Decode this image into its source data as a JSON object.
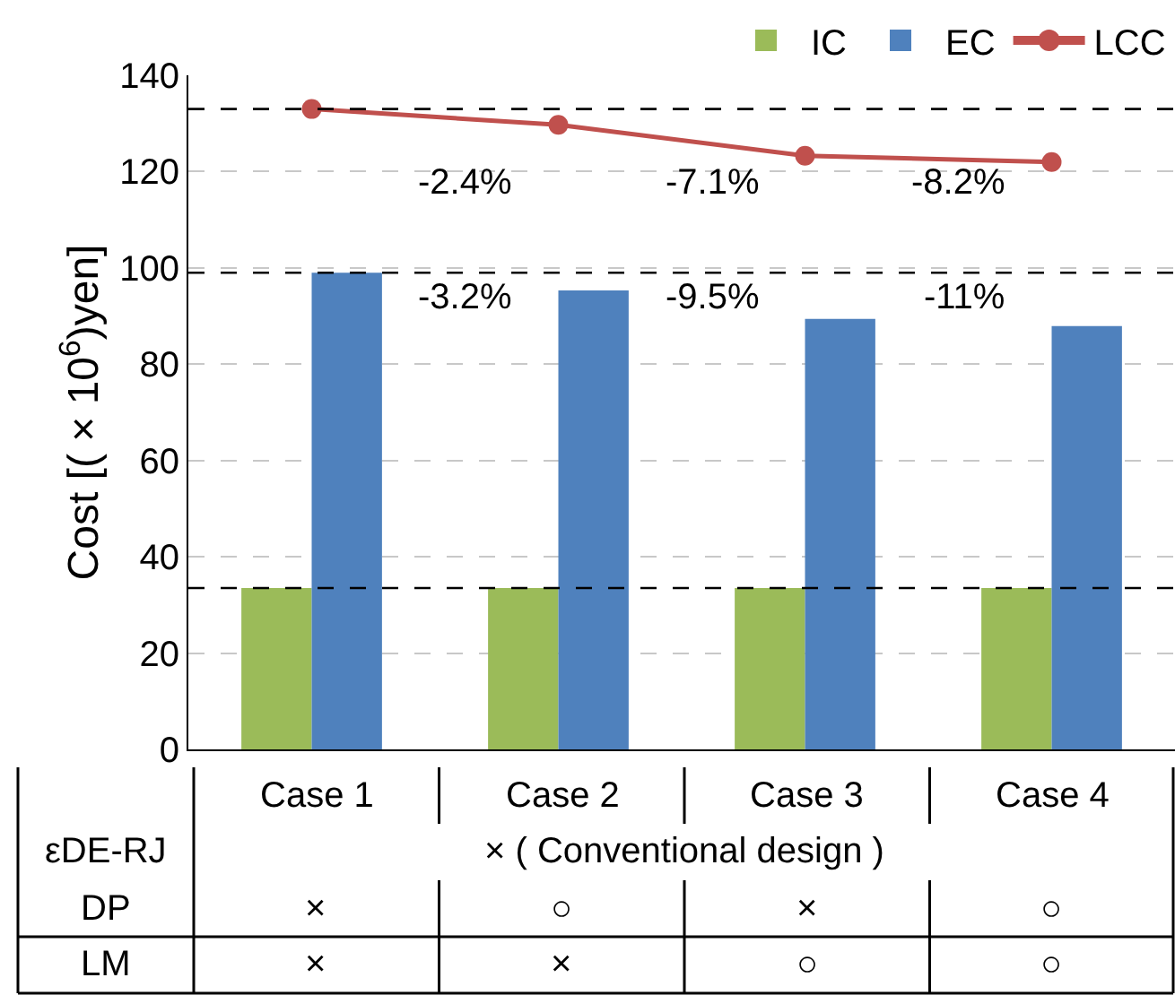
{
  "chart_data": {
    "type": "bar",
    "ylabel": "Cost [( × 10$^{6}$)yen]",
    "categories": [
      "Case 1",
      "Case 2",
      "Case 3",
      "Case 4"
    ],
    "series": [
      {
        "name": "IC",
        "color": "#9bbb59",
        "values": [
          33.5,
          33.5,
          33.5,
          33.5
        ]
      },
      {
        "name": "EC",
        "color": "#4f81bd",
        "values": [
          99,
          95.3,
          89.4,
          87.9
        ]
      },
      {
        "name": "LCC",
        "type": "line",
        "color": "#c0504d",
        "marker": "circle",
        "values": [
          133,
          129.7,
          123.3,
          122
        ]
      }
    ],
    "ylim": [
      0,
      140
    ],
    "yticks": [
      0,
      20,
      40,
      60,
      80,
      100,
      120,
      140
    ],
    "grid": "y",
    "legend": "top right",
    "tick_labels": "y",
    "ref_lines": [
      {
        "axis": "y",
        "value": 133,
        "color": "#000000",
        "line_style": "dashed"
      },
      {
        "axis": "y",
        "value": 99,
        "color": "#000000",
        "line_style": "dashed"
      },
      {
        "axis": "y",
        "value": 33.5,
        "color": "#000000",
        "line_style": "dashed"
      }
    ],
    "annotations": [
      "-2.4%",
      "-7.1%",
      "-8.2%",
      "-3.2%",
      "-9.5%",
      "-11%",
      "εDE-RJ",
      "× ( Conventional design )",
      "DP",
      "×",
      "○",
      "×",
      "○",
      "LM",
      "×",
      "×",
      "○",
      "○"
    ]
  }
}
